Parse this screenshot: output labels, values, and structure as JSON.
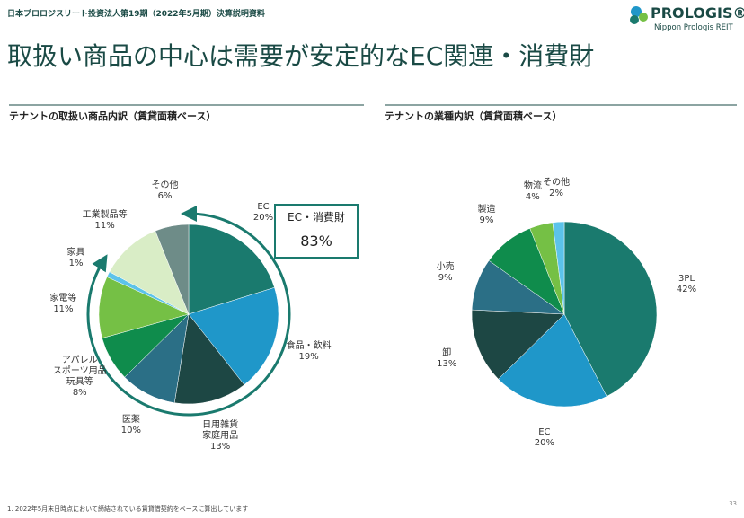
{
  "header": {
    "doc_title": "日本プロロジスリート投資法人第19期（2022年5月期）決算説明資料",
    "logo": "PROLOGIS®",
    "logo_sub": "Nippon Prologis REIT",
    "title": "取扱い商品の中心は需要が安定的なEC関連・消費財"
  },
  "chart_data": [
    {
      "type": "pie",
      "title": "テナントの取扱い商品内訳（賃貸面積ベース）",
      "categories": [
        "EC",
        "食品・飲料",
        "日用雑貨\n家庭用品",
        "医薬",
        "アパレル\nスポーツ用品\n玩具等",
        "家電等",
        "家具",
        "工業製品等",
        "その他"
      ],
      "values": [
        20,
        19,
        13,
        10,
        8,
        11,
        1,
        11,
        6
      ],
      "value_labels": [
        "20%",
        "19%",
        "13%",
        "10%",
        "8%",
        "11%",
        "1%",
        "11%",
        "6%"
      ],
      "colors": [
        "#1a7a6e",
        "#1f97c9",
        "#1d4744",
        "#2b6f86",
        "#0f8c4c",
        "#75c045",
        "#5cc3ea",
        "#d9edc6",
        "#6e8c88"
      ],
      "callout": {
        "text": "EC・消費財",
        "value": 83,
        "value_label": "83%"
      }
    },
    {
      "type": "pie",
      "title": "テナントの業種内訳（賃貸面積ベース）",
      "categories": [
        "3PL",
        "EC",
        "卸",
        "小売",
        "製造",
        "物流",
        "その他"
      ],
      "values": [
        42,
        20,
        13,
        9,
        9,
        4,
        2
      ],
      "value_labels": [
        "42%",
        "20%",
        "13%",
        "9%",
        "9%",
        "4%",
        "2%"
      ],
      "colors": [
        "#1a7a6e",
        "#1f97c9",
        "#1d4744",
        "#2b6f86",
        "#0f8c4c",
        "#75c045",
        "#5cc3ea"
      ]
    }
  ],
  "footnote": "1. 2022年5月末日時点において締結されている賃貸借契約をベースに算出しています",
  "page_number": "33"
}
